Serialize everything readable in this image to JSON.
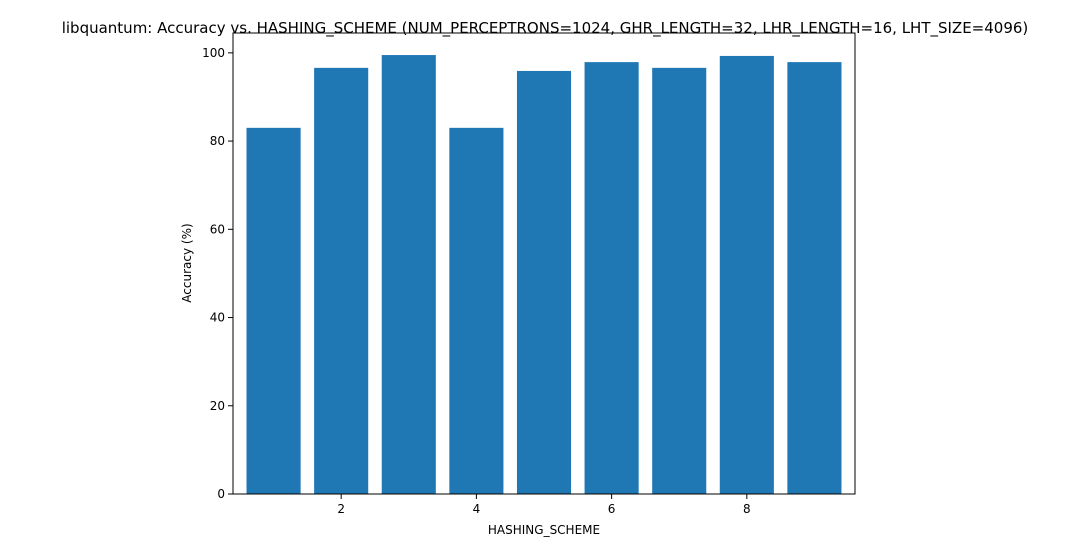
{
  "chart_data": {
    "type": "bar",
    "title": "libquantum: Accuracy vs. HASHING_SCHEME (NUM_PERCEPTRONS=1024, GHR_LENGTH=32, LHR_LENGTH=16, LHT_SIZE=4096)",
    "xlabel": "HASHING_SCHEME",
    "ylabel": "Accuracy (%)",
    "x": [
      1,
      2,
      3,
      4,
      5,
      6,
      7,
      8,
      9
    ],
    "values": [
      83.0,
      96.6,
      99.5,
      83.0,
      95.9,
      97.9,
      96.6,
      99.3,
      97.9
    ],
    "xlim": [
      0.4,
      9.6
    ],
    "ylim": [
      0,
      104.5
    ],
    "xticks": [
      2,
      4,
      6,
      8
    ],
    "yticks": [
      0,
      20,
      40,
      60,
      80,
      100
    ],
    "bar_color": "#1f77b4",
    "grid": false,
    "legend": "none"
  }
}
